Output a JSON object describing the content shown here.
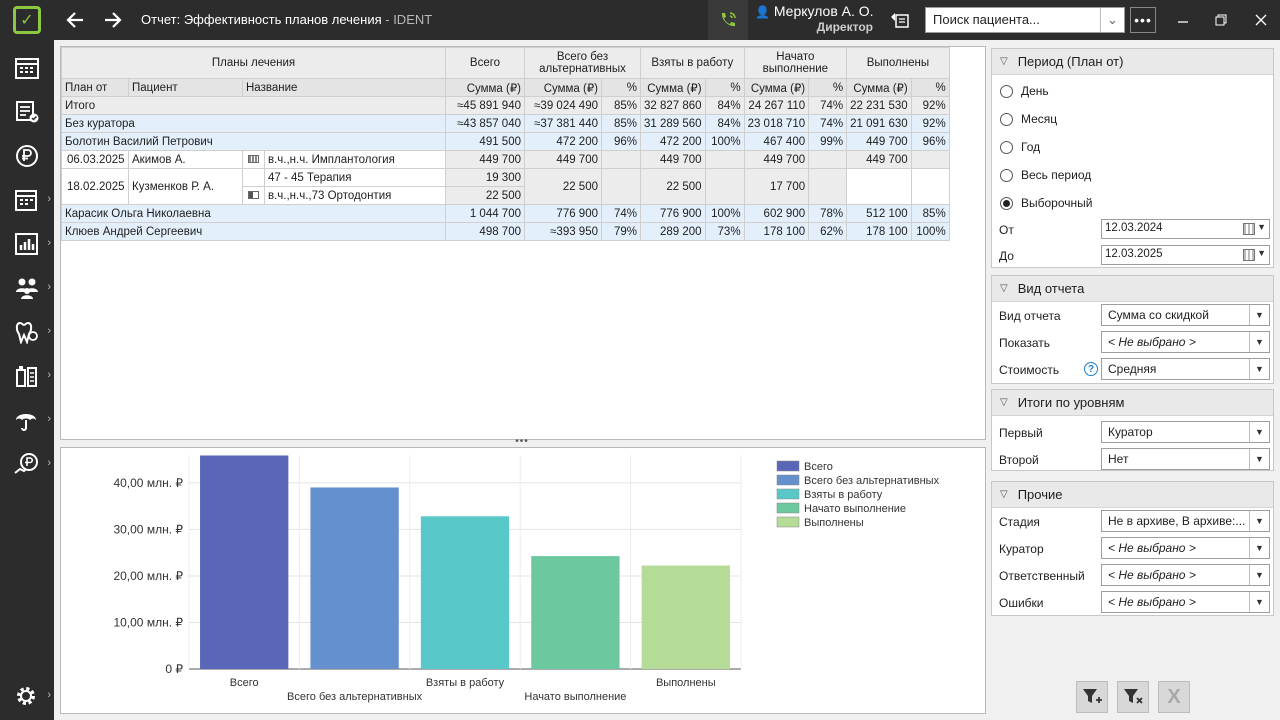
{
  "titlebar": {
    "title": "Отчет: Эффективность планов лечения",
    "app_name": " - IDENT",
    "user_name": "Меркулов А. О.",
    "user_role": "Директор",
    "search_placeholder": "Поиск пациента..."
  },
  "sidebar": {
    "items": [
      "schedule-icon",
      "documents-icon",
      "finance-icon",
      "calendar-icon",
      "reports-icon",
      "patients-icon",
      "dental-icon",
      "lab-icon",
      "insurance-icon",
      "payments-icon"
    ],
    "settings": "gear-icon"
  },
  "table": {
    "header_groups": {
      "plans": "Планы лечения",
      "total": "Всего",
      "no_alt": "Всего без альтернативных",
      "taken": "Взяты в работу",
      "started": "Начато выполнение",
      "done": "Выполнены"
    },
    "columns": {
      "plan_from": "План от",
      "patient": "Пациент",
      "name": "Название",
      "sum": "Сумма (₽)",
      "pct": "%"
    },
    "rows": {
      "total": {
        "label": "Итого",
        "total": "≈45 891 940",
        "no_alt": "≈39 024 490",
        "no_alt_pct": "85%",
        "taken": "32 827 860",
        "taken_pct": "84%",
        "started": "24 267 110",
        "started_pct": "74%",
        "done": "22 231 530",
        "done_pct": "92%"
      },
      "no_curator": {
        "label": "Без куратора",
        "total": "≈43 857 040",
        "no_alt": "≈37 381 440",
        "no_alt_pct": "85%",
        "taken": "31 289 560",
        "taken_pct": "84%",
        "started": "23 018 710",
        "started_pct": "74%",
        "done": "21 091 630",
        "done_pct": "92%"
      },
      "bolotin": {
        "label": "Болотин Василий Петрович",
        "total": "491 500",
        "no_alt": "472 200",
        "no_alt_pct": "96%",
        "taken": "472 200",
        "taken_pct": "100%",
        "started": "467 400",
        "started_pct": "99%",
        "done": "449 700",
        "done_pct": "96%"
      },
      "plan1": {
        "date": "06.03.2025",
        "patient": "Акимов А.",
        "name": "в.ч.,н.ч. Имплантология",
        "total": "449 700",
        "no_alt": "449 700",
        "taken": "449 700",
        "started": "449 700",
        "done": "449 700"
      },
      "plan2": {
        "date": "18.02.2025",
        "patient": "Кузменков Р. А.",
        "name_a": "47 - 45 Терапия",
        "name_b": "в.ч.,н.ч.,73 Ортодонтия",
        "total_a": "19 300",
        "total_b": "22 500",
        "no_alt": "22 500",
        "taken": "22 500",
        "started": "17 700"
      },
      "karasik": {
        "label": "Карасик Ольга Николаевна",
        "total": "1 044 700",
        "no_alt": "776 900",
        "no_alt_pct": "74%",
        "taken": "776 900",
        "taken_pct": "100%",
        "started": "602 900",
        "started_pct": "78%",
        "done": "512 100",
        "done_pct": "85%"
      },
      "kluev": {
        "label": "Клюев Андрей Сергеевич",
        "total": "498 700",
        "no_alt": "≈393 950",
        "no_alt_pct": "79%",
        "taken": "289 200",
        "taken_pct": "73%",
        "started": "178 100",
        "started_pct": "62%",
        "done": "178 100",
        "done_pct": "100%"
      }
    }
  },
  "chart_data": {
    "type": "bar",
    "categories": [
      "Всего",
      "Всего без альтернативных",
      "Взяты в работу",
      "Начато выполнение",
      "Выполнены"
    ],
    "values": [
      45891940,
      39024490,
      32827860,
      24267110,
      22231530
    ],
    "colors": [
      "#5a66b8",
      "#6490cd",
      "#59c8c8",
      "#6cc89e",
      "#b4dc96"
    ],
    "yticks": [
      "0 ₽",
      "10,00 млн. ₽",
      "20,00 млн. ₽",
      "30,00 млн. ₽",
      "40,00 млн. ₽"
    ],
    "ylim": [
      0,
      46000000
    ],
    "legend_position": "top-right",
    "grid": true
  },
  "right_panel": {
    "period": {
      "title": "Период (План от)",
      "options": [
        "День",
        "Месяц",
        "Год",
        "Весь период",
        "Выборочный"
      ],
      "selected": "Выборочный",
      "from_label": "От",
      "from_value": "12.03.2024",
      "to_label": "До",
      "to_value": "12.03.2025"
    },
    "report_type": {
      "title": "Вид отчета",
      "type_label": "Вид отчета",
      "type_value": "Сумма со скидкой",
      "show_label": "Показать",
      "show_value": "< Не выбрано >",
      "cost_label": "Стоимость",
      "cost_value": "Средняя"
    },
    "levels": {
      "title": "Итоги по уровням",
      "first_label": "Первый",
      "first_value": "Куратор",
      "second_label": "Второй",
      "second_value": "Нет"
    },
    "other": {
      "title": "Прочие",
      "stage_label": "Стадия",
      "stage_value": "Не в архиве, В архиве:...",
      "curator_label": "Куратор",
      "curator_value": "< Не выбрано >",
      "responsible_label": "Ответственный",
      "responsible_value": "< Не выбрано >",
      "errors_label": "Ошибки",
      "errors_value": "< Не выбрано >"
    }
  }
}
